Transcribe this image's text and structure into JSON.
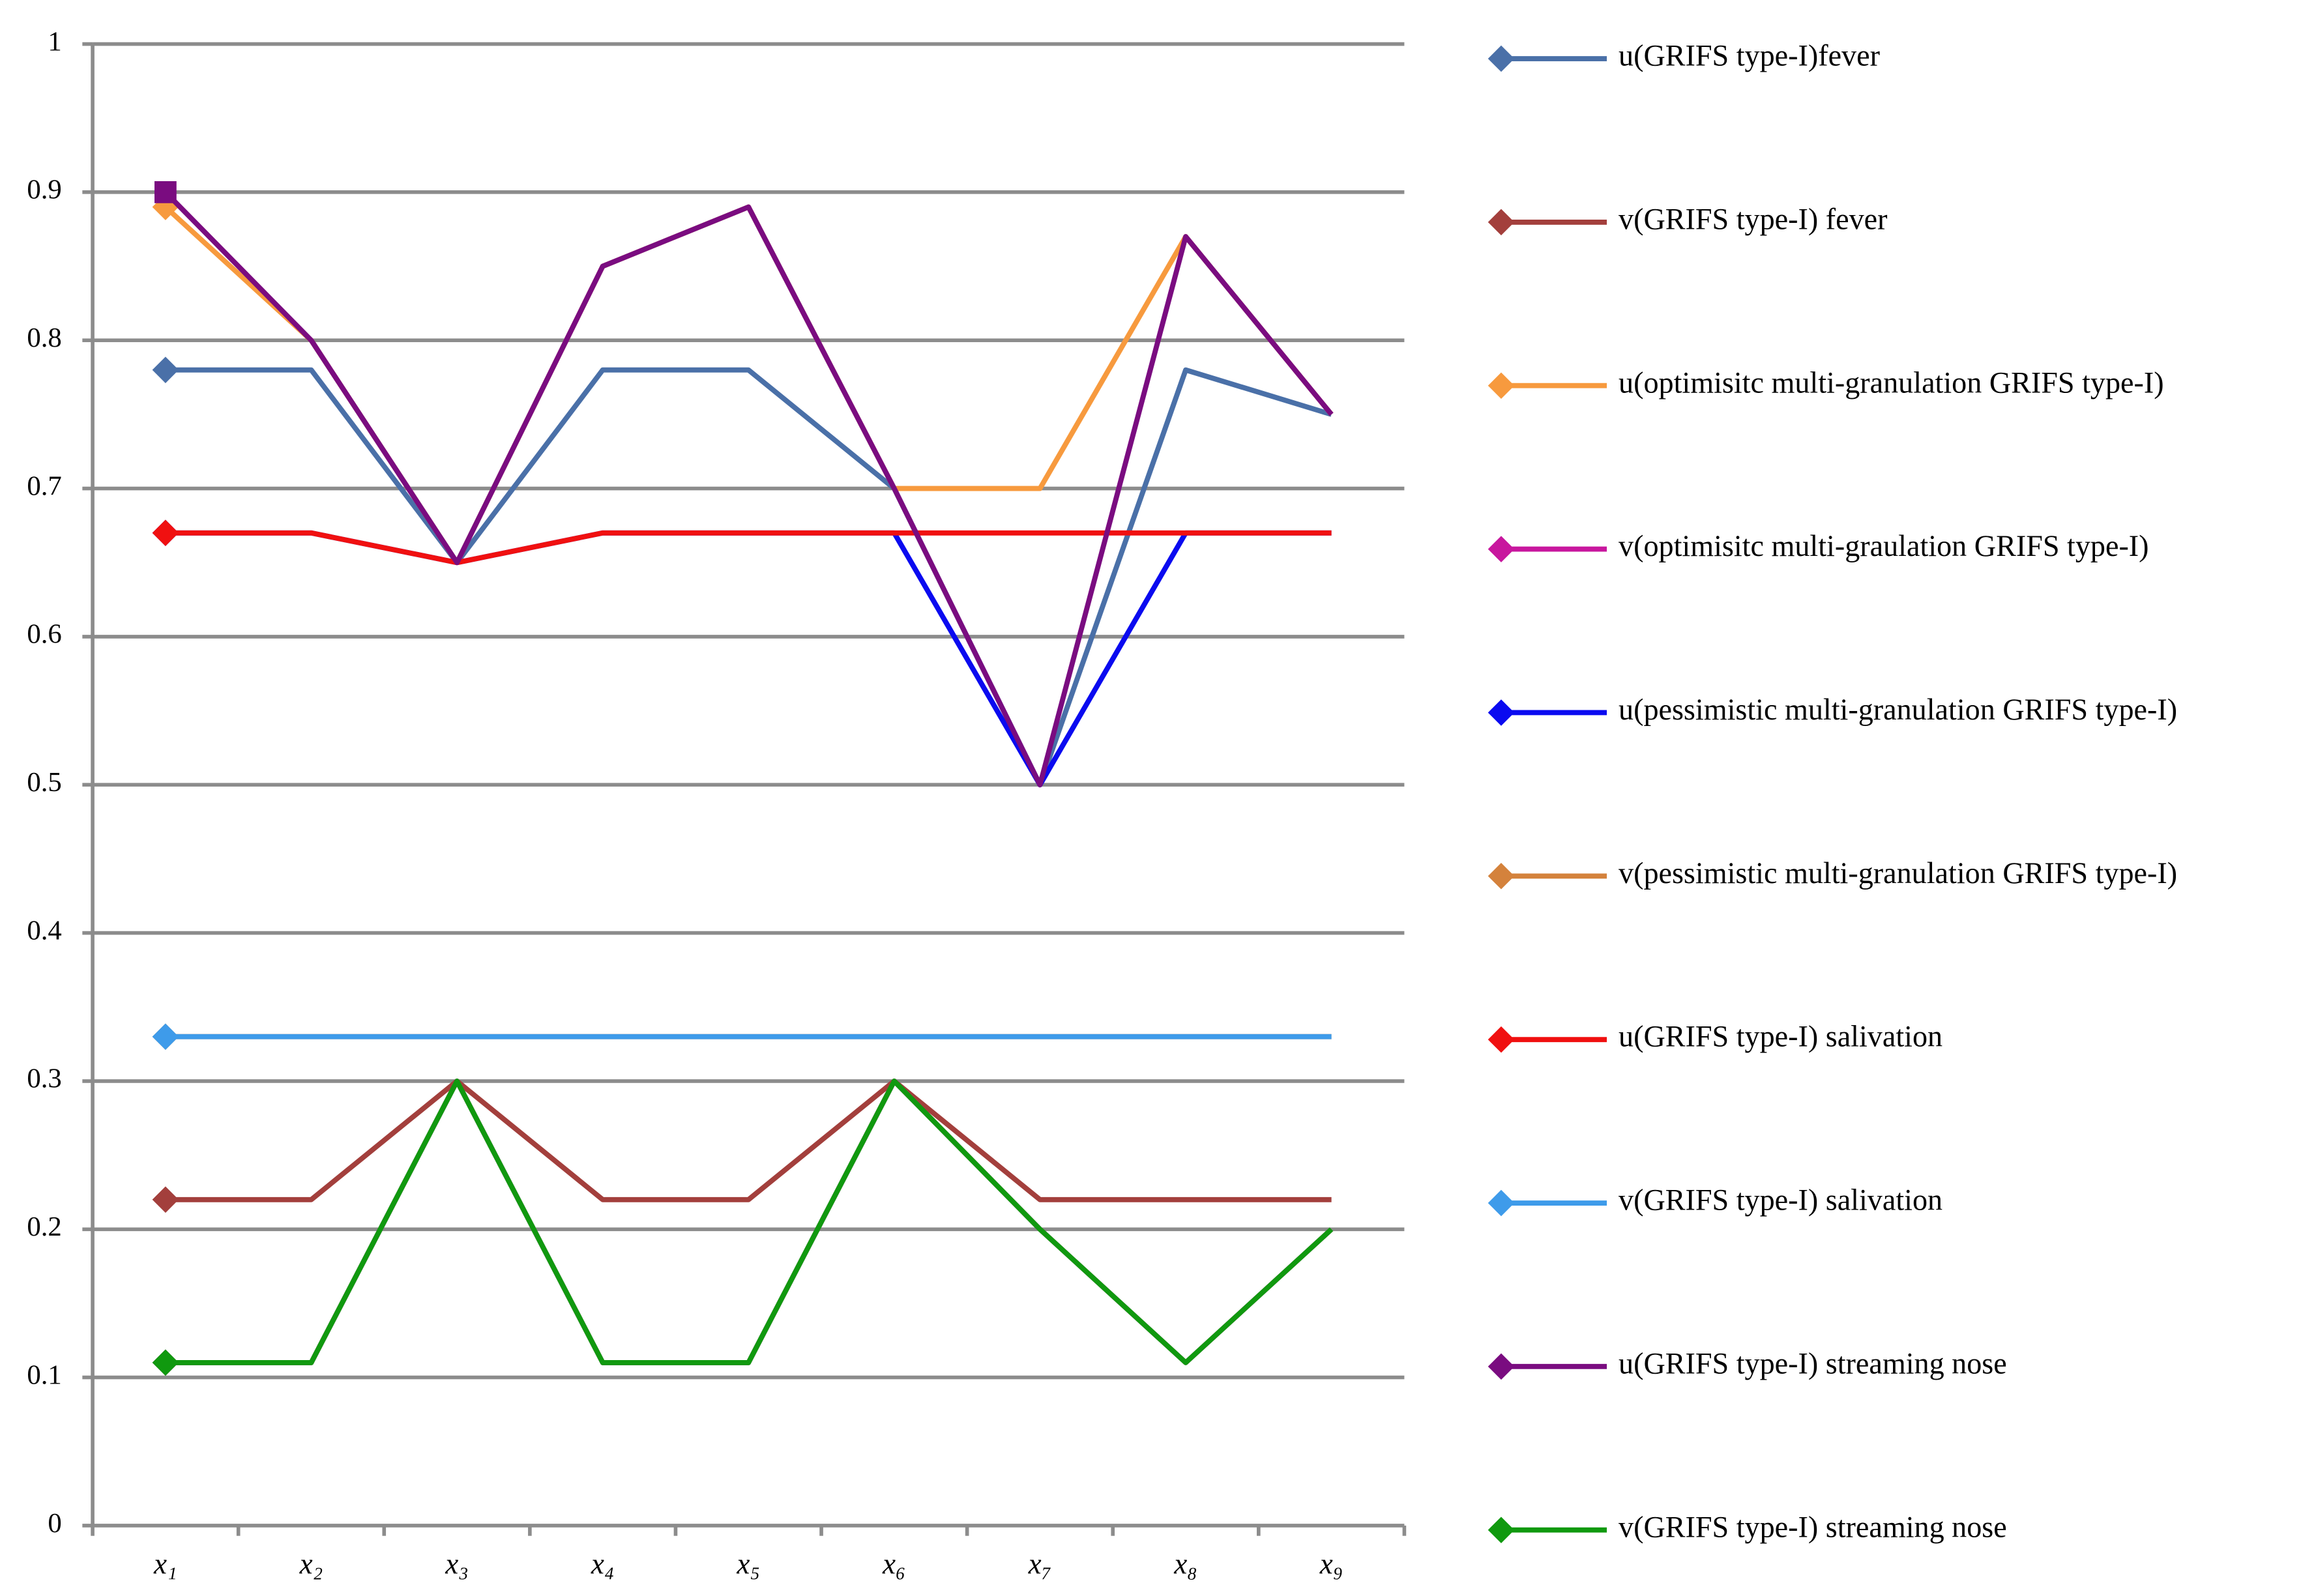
{
  "chart_data": {
    "type": "line",
    "categories": [
      "x₁",
      "x₂",
      "x₃",
      "x₄",
      "x₅",
      "x₆",
      "x₇",
      "x₈",
      "x₉"
    ],
    "series": [
      {
        "name": "u(GRIFS type-I)fever",
        "color": "#4a70a8",
        "values": [
          0.78,
          0.78,
          0.65,
          0.78,
          0.78,
          0.7,
          0.5,
          0.78,
          0.75
        ]
      },
      {
        "name": "v(GRIFS type-I) fever",
        "color": "#a33f3c",
        "values": [
          0.22,
          0.22,
          0.3,
          0.22,
          0.22,
          0.3,
          0.22,
          0.22,
          0.22
        ]
      },
      {
        "name": "u(optimisitc multi-granulation GRIFS type-I)",
        "color": "#f79a3e",
        "values": [
          0.89,
          0.8,
          0.65,
          0.85,
          0.89,
          0.7,
          0.7,
          0.87,
          0.75
        ]
      },
      {
        "name": "v(optimisitc multi-graulation GRIFS type-I)",
        "color": "#c8179e",
        "values": [
          0.11,
          0.11,
          0.3,
          0.11,
          0.11,
          0.3,
          0.2,
          0.11,
          0.2
        ]
      },
      {
        "name": "u(pessimistic multi-granulation GRIFS type-I)",
        "color": "#0a0af0",
        "values": [
          0.67,
          0.67,
          0.65,
          0.67,
          0.67,
          0.67,
          0.5,
          0.67,
          0.67
        ]
      },
      {
        "name": "v(pessimistic multi-granulation GRIFS type-I)",
        "color": "#d4823c",
        "values": [
          0.33,
          0.33,
          0.33,
          0.33,
          0.33,
          0.33,
          0.33,
          0.33,
          0.33
        ]
      },
      {
        "name": "u(GRIFS type-I) salivation",
        "color": "#f01010",
        "values": [
          0.67,
          0.67,
          0.65,
          0.67,
          0.67,
          0.67,
          0.67,
          0.67,
          0.67
        ]
      },
      {
        "name": "v(GRIFS type-I) salivation",
        "color": "#3e9bea",
        "values": [
          0.33,
          0.33,
          0.33,
          0.33,
          0.33,
          0.33,
          0.33,
          0.33,
          0.33
        ]
      },
      {
        "name": "u(GRIFS type-I) streaming nose",
        "color": "#7a0c80",
        "values": [
          0.9,
          0.8,
          0.65,
          0.85,
          0.89,
          0.7,
          0.5,
          0.87,
          0.75
        ]
      },
      {
        "name": "v(GRIFS type-I) streaming nose",
        "color": "#10990f",
        "values": [
          0.11,
          0.11,
          0.3,
          0.11,
          0.11,
          0.3,
          0.2,
          0.11,
          0.2
        ]
      }
    ],
    "ylim": [
      0,
      1
    ],
    "yticks": [
      0,
      0.1,
      0.2,
      0.3,
      0.4,
      0.5,
      0.6,
      0.7,
      0.8,
      0.9,
      1
    ],
    "grid": true,
    "legend": "right"
  }
}
